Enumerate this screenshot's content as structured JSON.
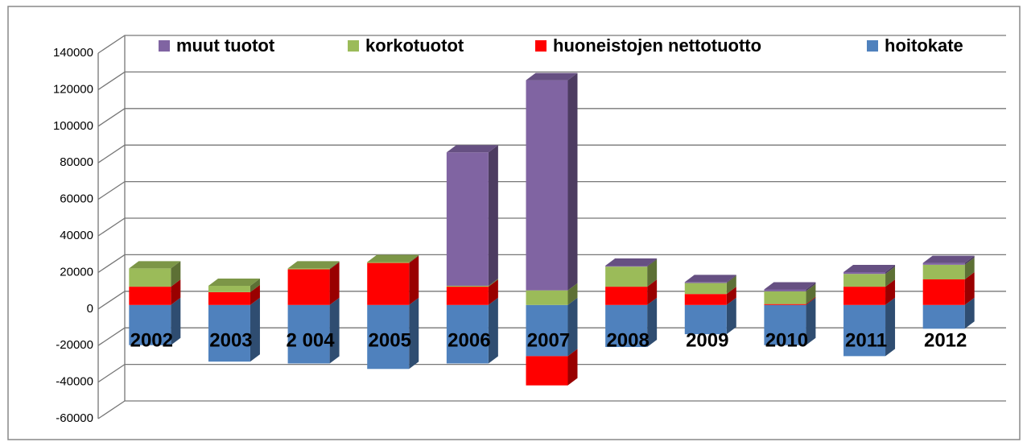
{
  "chart_data": {
    "type": "bar3d_stacked",
    "categories": [
      "2002",
      "2003",
      "2 004",
      "2005",
      "2006",
      "2007",
      "2008",
      "2009",
      "2010",
      "2011",
      "2012"
    ],
    "series": [
      {
        "name": "hoitokate",
        "color": "#4f81bd",
        "values": [
          -22000,
          -31000,
          -32000,
          -35000,
          -32000,
          -28000,
          -23000,
          -16000,
          -22000,
          -28000,
          -13000
        ]
      },
      {
        "name": "huoneistojen nettotuotto",
        "color": "#ff0000",
        "values": [
          10000,
          7000,
          19500,
          23000,
          10000,
          -16000,
          10000,
          6000,
          500,
          10000,
          14000
        ]
      },
      {
        "name": "korkotuotot",
        "color": "#9bbb59",
        "values": [
          10000,
          3500,
          500,
          500,
          500,
          8000,
          11000,
          6000,
          7000,
          7000,
          8000
        ]
      },
      {
        "name": "muut tuotot",
        "color": "#8064a2",
        "values": [
          0,
          0,
          0,
          0,
          73000,
          115000,
          500,
          500,
          1000,
          1000,
          1000
        ]
      }
    ],
    "ylim": [
      -60000,
      140000
    ],
    "yticks": [
      -60000,
      -40000,
      -20000,
      0,
      20000,
      40000,
      60000,
      80000,
      100000,
      120000,
      140000
    ],
    "grid": true
  }
}
